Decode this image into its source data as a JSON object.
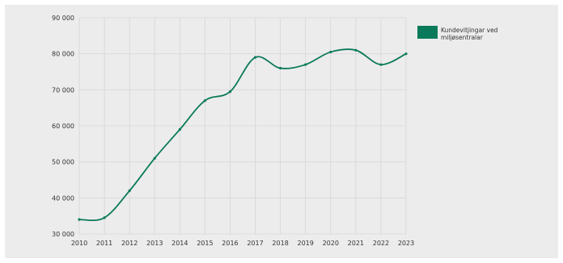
{
  "chart_data": {
    "type": "line",
    "title": "",
    "xlabel": "",
    "ylabel": "",
    "x": [
      "2010",
      "2011",
      "2012",
      "2013",
      "2014",
      "2015",
      "2016",
      "2017",
      "2018",
      "2019",
      "2020",
      "2021",
      "2022",
      "2023"
    ],
    "series": [
      {
        "name": "Kundevitjingar ved miljøsentralar",
        "values": [
          34000,
          34500,
          42000,
          51000,
          59000,
          67000,
          69500,
          79000,
          76000,
          77000,
          80500,
          81000,
          77000,
          80000
        ],
        "color": "#0b7a5a"
      }
    ],
    "ylim": [
      30000,
      90000
    ],
    "yticks": [
      30000,
      40000,
      50000,
      60000,
      70000,
      80000,
      90000
    ],
    "ytick_labels": [
      "30 000",
      "40 000",
      "50 000",
      "60 000",
      "70 000",
      "80 000",
      "90 000"
    ],
    "grid": true,
    "legend_position": "top-right"
  }
}
